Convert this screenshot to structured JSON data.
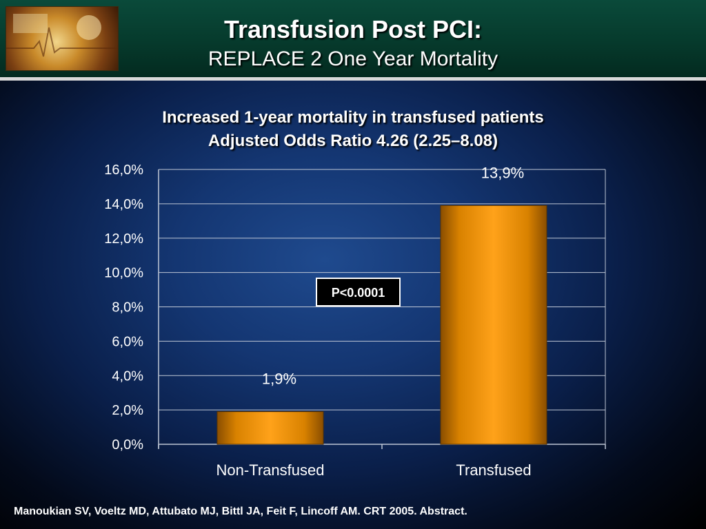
{
  "header": {
    "title": "Transfusion Post PCI:",
    "subtitle": "REPLACE 2 One Year Mortality"
  },
  "headline": {
    "line1": "Increased 1-year mortality in transfused patients",
    "line2": "Adjusted Odds Ratio 4.26 (2.25–8.08)"
  },
  "chart_data": {
    "type": "bar",
    "categories": [
      "Non-Transfused",
      "Transfused"
    ],
    "values": [
      1.9,
      13.9
    ],
    "value_labels": [
      "1,9%",
      "13,9%"
    ],
    "ylim": [
      0,
      16
    ],
    "yticks": [
      {
        "value": 0,
        "label": "0,0%"
      },
      {
        "value": 2,
        "label": "2,0%"
      },
      {
        "value": 4,
        "label": "4,0%"
      },
      {
        "value": 6,
        "label": "6,0%"
      },
      {
        "value": 8,
        "label": "8,0%"
      },
      {
        "value": 10,
        "label": "10,0%"
      },
      {
        "value": 12,
        "label": "12,0%"
      },
      {
        "value": 14,
        "label": "14,0%"
      },
      {
        "value": 16,
        "label": "16,0%"
      }
    ],
    "annotation": "P<0.0001",
    "grid": true,
    "bar_color": "#ff9900"
  },
  "citation": "Manoukian SV, Voeltz MD, Attubato MJ, Bittl JA, Feit F, Lincoff AM.  CRT 2005.  Abstract."
}
